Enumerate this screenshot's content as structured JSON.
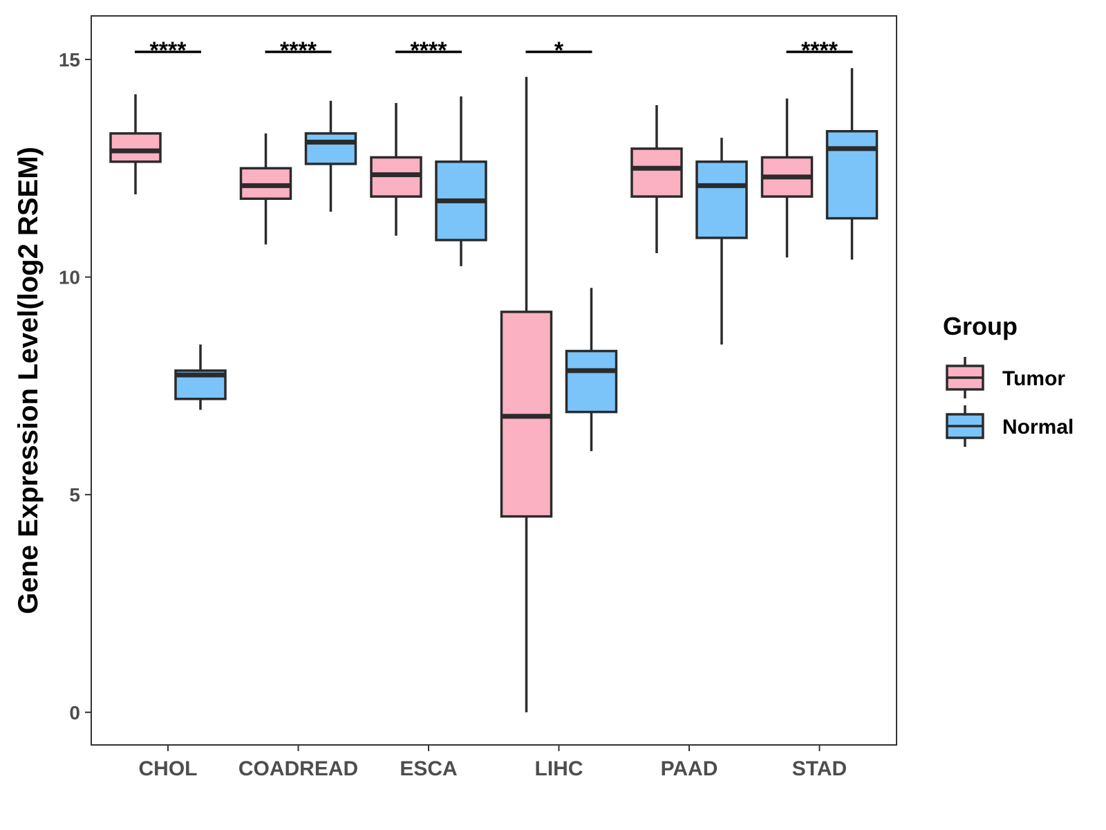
{
  "chart_data": {
    "type": "boxplot",
    "title": "",
    "xlabel": "",
    "ylabel": "Gene Expression Level(log2 RSEM)",
    "ylim": [
      -0.75,
      16
    ],
    "yticks": [
      0,
      5,
      10,
      15
    ],
    "categories": [
      "CHOL",
      "COADREAD",
      "ESCA",
      "LIHC",
      "PAAD",
      "STAD"
    ],
    "legend": {
      "title": "Group",
      "position": "right",
      "entries": [
        {
          "name": "Tumor",
          "color": "#FBB1C2"
        },
        {
          "name": "Normal",
          "color": "#7BC4FA"
        }
      ]
    },
    "series": [
      {
        "name": "Tumor",
        "color": "#FBB1C2",
        "boxes": [
          {
            "category": "CHOL",
            "min": 11.9,
            "q1": 12.65,
            "median": 12.9,
            "q3": 13.3,
            "max": 14.2
          },
          {
            "category": "COADREAD",
            "min": 10.75,
            "q1": 11.8,
            "median": 12.1,
            "q3": 12.5,
            "max": 13.3
          },
          {
            "category": "ESCA",
            "min": 10.95,
            "q1": 11.85,
            "median": 12.35,
            "q3": 12.75,
            "max": 14.0
          },
          {
            "category": "LIHC",
            "min": 0.0,
            "q1": 4.5,
            "median": 6.8,
            "q3": 9.2,
            "max": 14.6
          },
          {
            "category": "PAAD",
            "min": 10.55,
            "q1": 11.85,
            "median": 12.5,
            "q3": 12.95,
            "max": 13.95
          },
          {
            "category": "STAD",
            "min": 10.45,
            "q1": 11.85,
            "median": 12.3,
            "q3": 12.75,
            "max": 14.1
          }
        ]
      },
      {
        "name": "Normal",
        "color": "#7BC4FA",
        "boxes": [
          {
            "category": "CHOL",
            "min": 6.95,
            "q1": 7.2,
            "median": 7.75,
            "q3": 7.85,
            "max": 8.45
          },
          {
            "category": "COADREAD",
            "min": 11.5,
            "q1": 12.6,
            "median": 13.1,
            "q3": 13.3,
            "max": 14.05
          },
          {
            "category": "ESCA",
            "min": 10.25,
            "q1": 10.85,
            "median": 11.75,
            "q3": 12.65,
            "max": 14.15
          },
          {
            "category": "LIHC",
            "min": 6.0,
            "q1": 6.9,
            "median": 7.85,
            "q3": 8.3,
            "max": 9.75
          },
          {
            "category": "PAAD",
            "min": 8.45,
            "q1": 10.9,
            "median": 12.1,
            "q3": 12.65,
            "max": 13.2
          },
          {
            "category": "STAD",
            "min": 10.4,
            "q1": 11.35,
            "median": 12.95,
            "q3": 13.35,
            "max": 14.8
          }
        ]
      }
    ],
    "significance": [
      {
        "category": "CHOL",
        "label": "****"
      },
      {
        "category": "COADREAD",
        "label": "****"
      },
      {
        "category": "ESCA",
        "label": "****"
      },
      {
        "category": "LIHC",
        "label": "*"
      },
      {
        "category": "STAD",
        "label": "****"
      }
    ],
    "colors": {
      "frame": "#333333",
      "box_stroke": "#2b2b2b",
      "tick_text": "#4d4d4d"
    }
  }
}
